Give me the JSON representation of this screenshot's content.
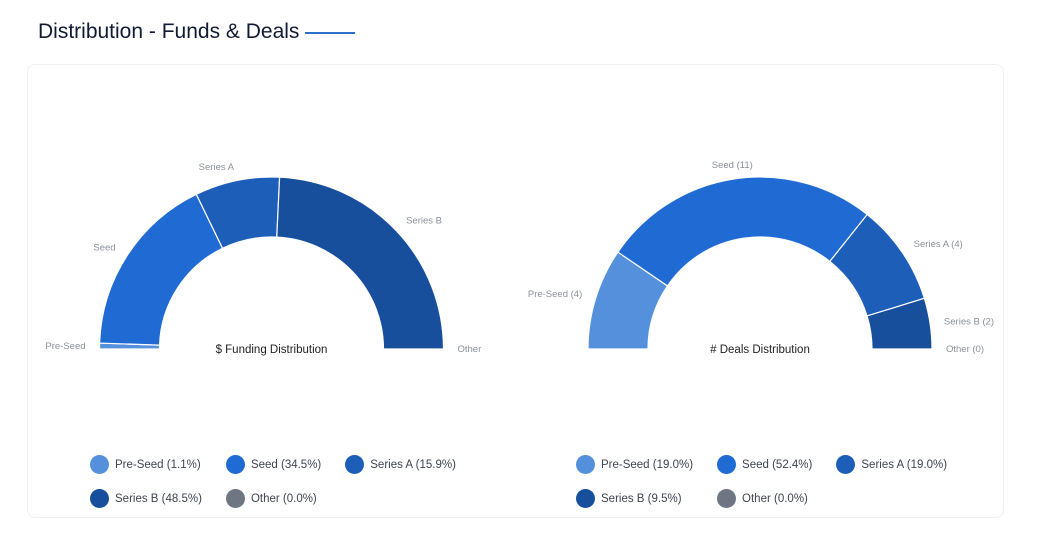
{
  "header": {
    "title": "Distribution - Funds & Deals"
  },
  "colors": {
    "Pre-Seed": "#5590dc",
    "Seed": "#1f6bd3",
    "Series A": "#1c5eb8",
    "Series B": "#174f9c",
    "Other": "#6f7683"
  },
  "chart_data": [
    {
      "type": "pie",
      "variant": "semi-donut",
      "center_label": "$ Funding Distribution",
      "categories": [
        "Pre-Seed",
        "Seed",
        "Series A",
        "Series B",
        "Other"
      ],
      "values": [
        1.1,
        34.5,
        15.9,
        48.5,
        0.0
      ],
      "slice_labels": [
        "Pre-Seed",
        "Seed",
        "Series A",
        "Series B",
        "Other"
      ],
      "legend": [
        "Pre-Seed (1.1%)",
        "Seed (34.5%)",
        "Series A (15.9%)",
        "Series B (48.5%)",
        "Other (0.0%)"
      ],
      "legend_placement": "bottom"
    },
    {
      "type": "pie",
      "variant": "semi-donut",
      "center_label": "# Deals Distribution",
      "categories": [
        "Pre-Seed",
        "Seed",
        "Series A",
        "Series B",
        "Other"
      ],
      "values": [
        4,
        11,
        4,
        2,
        0
      ],
      "slice_labels": [
        "Pre-Seed (4)",
        "Seed (11)",
        "Series A (4)",
        "Series B (2)",
        "Other (0)"
      ],
      "legend": [
        "Pre-Seed (19.0%)",
        "Seed (52.4%)",
        "Series A (19.0%)",
        "Series B (9.5%)",
        "Other (0.0%)"
      ],
      "legend_placement": "bottom"
    }
  ]
}
